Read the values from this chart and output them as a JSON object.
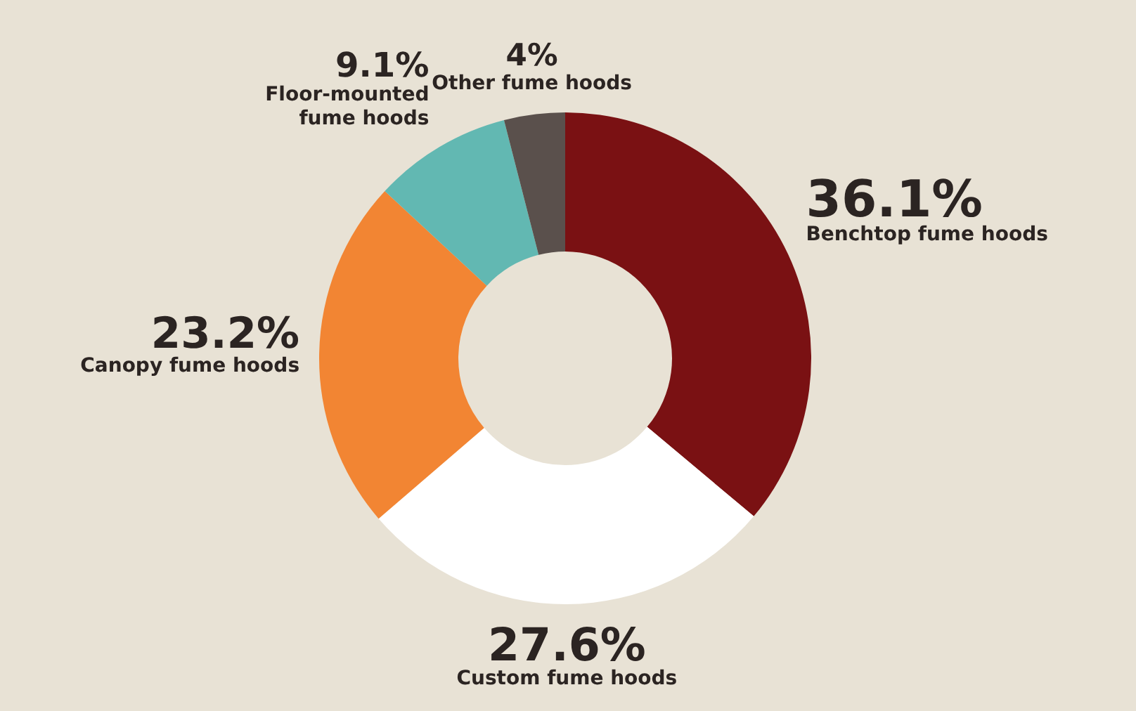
{
  "chart_data": {
    "type": "donut",
    "categories": [
      "Benchtop fume hoods",
      "Custom fume hoods",
      "Canopy fume hoods",
      "Floor-mounted\nfume hoods",
      "Other fume hoods"
    ],
    "values": [
      36.1,
      27.6,
      23.2,
      9.1,
      4
    ],
    "colors": [
      "#7a1113",
      "#ffffff",
      "#f28533",
      "#62b8b2",
      "#5a504c"
    ],
    "value_labels": [
      "36.1%",
      "27.6%",
      "23.2%",
      "9.1%",
      "4%"
    ],
    "legend": false
  }
}
